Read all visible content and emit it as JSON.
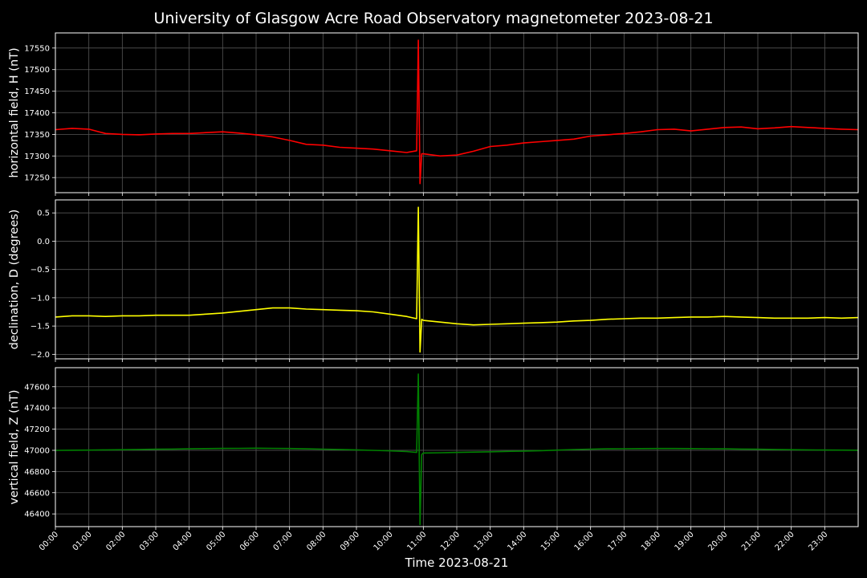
{
  "chart_data": {
    "type": "line",
    "title": "University of Glasgow Acre Road Observatory magnetometer 2023-08-21",
    "xlabel": "Time 2023-08-21",
    "xlim": [
      0,
      24
    ],
    "x_tick_labels": [
      "00:00",
      "01:00",
      "02:00",
      "03:00",
      "04:00",
      "05:00",
      "06:00",
      "07:00",
      "08:00",
      "09:00",
      "10:00",
      "11:00",
      "12:00",
      "13:00",
      "14:00",
      "15:00",
      "16:00",
      "17:00",
      "18:00",
      "19:00",
      "20:00",
      "21:00",
      "22:00",
      "23:00"
    ],
    "grid": true,
    "background": "#000000",
    "panels": [
      {
        "ylabel": "horizontal field, H (nT)",
        "color": "#ff0000",
        "ylim": [
          17215,
          17585
        ],
        "y_ticks": [
          17250,
          17300,
          17350,
          17400,
          17450,
          17500,
          17550
        ],
        "y_tick_labels": [
          "17250",
          "17300",
          "17350",
          "17400",
          "17450",
          "17500",
          "17550"
        ],
        "x": [
          0,
          0.5,
          1,
          1.5,
          2,
          2.5,
          3,
          3.5,
          4,
          4.5,
          5,
          5.5,
          6,
          6.5,
          7,
          7.5,
          8,
          8.5,
          9,
          9.5,
          10,
          10.5,
          10.8,
          10.85,
          10.9,
          10.95,
          11,
          11.5,
          12,
          12.5,
          13,
          13.5,
          14,
          14.5,
          15,
          15.5,
          16,
          16.5,
          17,
          17.5,
          18,
          18.5,
          19,
          19.5,
          20,
          20.5,
          21,
          21.5,
          22,
          22.5,
          23,
          23.5,
          24
        ],
        "values": [
          17361,
          17364,
          17362,
          17352,
          17350,
          17349,
          17351,
          17352,
          17352,
          17354,
          17356,
          17353,
          17349,
          17344,
          17336,
          17327,
          17325,
          17320,
          17318,
          17316,
          17312,
          17308,
          17312,
          17568,
          17236,
          17305,
          17305,
          17300,
          17302,
          17311,
          17322,
          17325,
          17330,
          17333,
          17336,
          17339,
          17346,
          17349,
          17352,
          17356,
          17361,
          17362,
          17358,
          17362,
          17366,
          17367,
          17363,
          17365,
          17368,
          17366,
          17364,
          17362,
          17361
        ]
      },
      {
        "ylabel": "declination, D (degrees)",
        "color": "#ffff00",
        "ylim": [
          -2.08,
          0.73
        ],
        "y_ticks": [
          -2.0,
          -1.5,
          -1.0,
          -0.5,
          0.0,
          0.5
        ],
        "y_tick_labels": [
          "−2.0",
          "−1.5",
          "−1.0",
          "−0.5",
          "0.0",
          "0.5"
        ],
        "x": [
          0,
          0.5,
          1,
          1.5,
          2,
          2.5,
          3,
          3.5,
          4,
          4.5,
          5,
          5.5,
          6,
          6.5,
          7,
          7.5,
          8,
          8.5,
          9,
          9.5,
          10,
          10.5,
          10.8,
          10.85,
          10.9,
          10.95,
          11,
          11.5,
          12,
          12.5,
          13,
          13.5,
          14,
          14.5,
          15,
          15.5,
          16,
          16.5,
          17,
          17.5,
          18,
          18.5,
          19,
          19.5,
          20,
          20.5,
          21,
          21.5,
          22,
          22.5,
          23,
          23.5,
          24
        ],
        "values": [
          -1.34,
          -1.32,
          -1.32,
          -1.33,
          -1.32,
          -1.32,
          -1.31,
          -1.31,
          -1.31,
          -1.29,
          -1.27,
          -1.24,
          -1.21,
          -1.18,
          -1.18,
          -1.2,
          -1.21,
          -1.22,
          -1.23,
          -1.25,
          -1.29,
          -1.33,
          -1.37,
          0.6,
          -1.96,
          -1.38,
          -1.4,
          -1.43,
          -1.46,
          -1.48,
          -1.47,
          -1.46,
          -1.45,
          -1.44,
          -1.43,
          -1.41,
          -1.4,
          -1.38,
          -1.37,
          -1.36,
          -1.36,
          -1.35,
          -1.34,
          -1.34,
          -1.33,
          -1.34,
          -1.35,
          -1.36,
          -1.36,
          -1.36,
          -1.35,
          -1.36,
          -1.35
        ]
      },
      {
        "ylabel": "vertical field, Z (nT)",
        "color": "#008000",
        "ylim": [
          46280,
          47780
        ],
        "y_ticks": [
          46400,
          46600,
          46800,
          47000,
          47200,
          47400,
          47600
        ],
        "y_tick_labels": [
          "46400",
          "46600",
          "46800",
          "47000",
          "47200",
          "47400",
          "47600"
        ],
        "x": [
          0,
          0.5,
          1,
          1.5,
          2,
          2.5,
          3,
          3.5,
          4,
          4.5,
          5,
          5.5,
          6,
          6.5,
          7,
          7.5,
          8,
          8.5,
          9,
          9.5,
          10,
          10.5,
          10.8,
          10.85,
          10.9,
          10.95,
          11,
          11.5,
          12,
          12.5,
          13,
          13.5,
          14,
          14.5,
          15,
          15.5,
          16,
          16.5,
          17,
          17.5,
          18,
          18.5,
          19,
          19.5,
          20,
          20.5,
          21,
          21.5,
          22,
          22.5,
          23,
          23.5,
          24
        ],
        "values": [
          47000,
          47001,
          47002,
          47004,
          47006,
          47008,
          47010,
          47012,
          47014,
          47016,
          47018,
          47019,
          47020,
          47019,
          47017,
          47014,
          47011,
          47008,
          47004,
          47000,
          46995,
          46988,
          46980,
          47720,
          46300,
          46960,
          46975,
          46977,
          46980,
          46983,
          46986,
          46990,
          46993,
          46997,
          47002,
          47007,
          47011,
          47014,
          47015,
          47016,
          47017,
          47017,
          47016,
          47015,
          47014,
          47012,
          47010,
          47008,
          47006,
          47004,
          47003,
          47002,
          47001
        ]
      }
    ]
  }
}
